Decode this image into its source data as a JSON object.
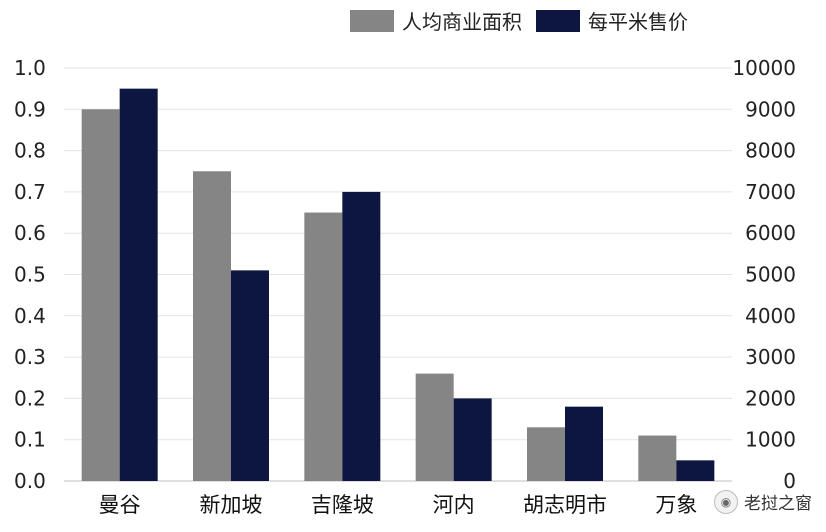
{
  "chart_data": {
    "type": "bar",
    "categories": [
      "曼谷",
      "新加坡",
      "吉隆坡",
      "河内",
      "胡志明市",
      "万象"
    ],
    "series": [
      {
        "name": "人均商业面积",
        "axis": "left",
        "color": "#858585",
        "values": [
          0.9,
          0.75,
          0.65,
          0.26,
          0.13,
          0.11
        ]
      },
      {
        "name": "每平米售价",
        "axis": "right",
        "color": "#0c1640",
        "values": [
          9500,
          5100,
          7000,
          2000,
          1800,
          500
        ]
      }
    ],
    "y_left": {
      "min": 0,
      "max": 1.0,
      "ticks": [
        "0.0",
        "0.1",
        "0.2",
        "0.3",
        "0.4",
        "0.5",
        "0.6",
        "0.7",
        "0.8",
        "0.9",
        "1.0"
      ]
    },
    "y_right": {
      "min": 0,
      "max": 10000,
      "ticks": [
        "0",
        "1000",
        "2000",
        "3000",
        "4000",
        "5000",
        "6000",
        "7000",
        "8000",
        "9000",
        "10000"
      ]
    },
    "legend_position": "top-right",
    "grid": true
  },
  "watermark": {
    "text": "老挝之窗",
    "icon": "wechat-icon"
  }
}
